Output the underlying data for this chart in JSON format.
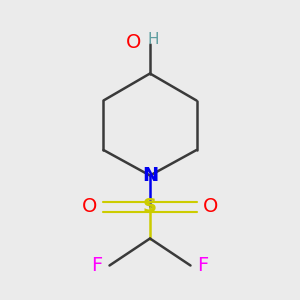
{
  "background_color": "#ebebeb",
  "atom_colors": {
    "C": "#3a3a3a",
    "N": "#0000ee",
    "O": "#ff0000",
    "S": "#cccc00",
    "F": "#ff00ff",
    "H": "#5f9ea0"
  },
  "bond_color": "#3a3a3a",
  "bond_width": 1.8,
  "figsize": [
    3.0,
    3.0
  ],
  "dpi": 100
}
